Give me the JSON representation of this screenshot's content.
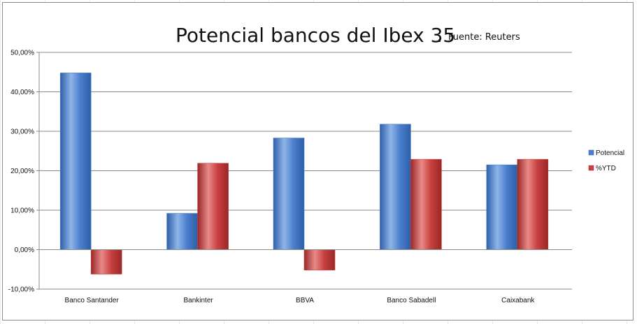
{
  "chart_data": {
    "type": "bar",
    "title": "Potencial bancos del Ibex 35",
    "title_suffix": ".",
    "subtitle": "Fuente: Reuters",
    "categories": [
      "Banco Santander",
      "Bankinter",
      "BBVA",
      "Banco Sabadell",
      "Caixabank"
    ],
    "series": [
      {
        "name": "Potencial",
        "values": [
          44.8,
          9.2,
          28.3,
          31.8,
          21.5
        ],
        "color": "#4a7fcd"
      },
      {
        "name": "%YTD",
        "values": [
          -6.2,
          21.9,
          -5.2,
          22.9,
          22.9
        ],
        "color": "#c8403f"
      }
    ],
    "ylim": [
      -10,
      50
    ],
    "yticks": [
      "-10,00%",
      "0,00%",
      "10,00%",
      "20,00%",
      "30,00%",
      "40,00%",
      "50,00%"
    ],
    "ytick_values": [
      -10,
      0,
      10,
      20,
      30,
      40,
      50
    ],
    "grid": true,
    "legend_position": "right"
  }
}
